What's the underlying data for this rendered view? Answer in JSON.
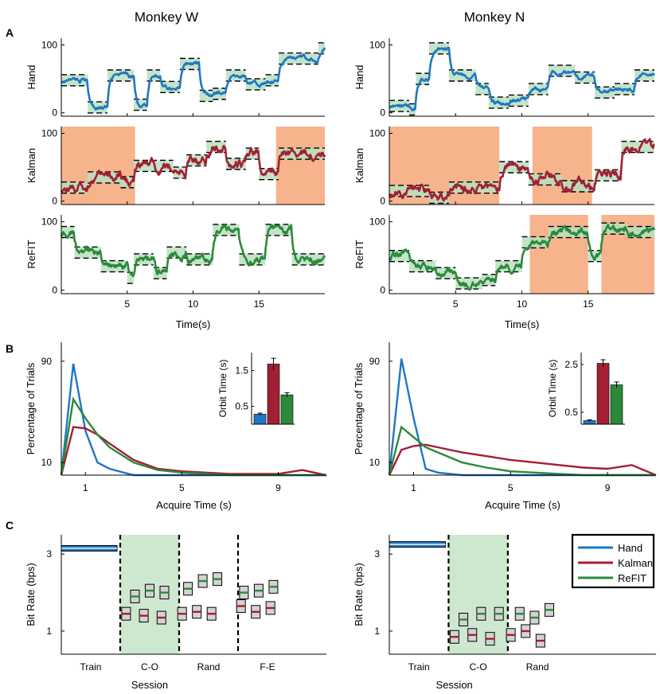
{
  "columns": [
    "Monkey W",
    "Monkey N"
  ],
  "panel_labels": [
    "A",
    "B",
    "C"
  ],
  "colors": {
    "hand": "#1f77c4",
    "kalman": "#a31f34",
    "refit": "#2a8a3a",
    "band": "#b9dfc0",
    "orange": "#f7b38c",
    "session": "#cde8cf"
  },
  "chart_data": [
    {
      "type": "line",
      "panel": "A",
      "monkey": "Monkey W",
      "xlabel": "Time(s)",
      "xlim": [
        0,
        20
      ],
      "xticks": [
        5,
        10,
        15
      ],
      "rows": [
        {
          "ylabel": "Hand",
          "ylim": [
            -5,
            110
          ],
          "yticks": [
            0,
            100
          ],
          "highlights": [],
          "targets": [
            [
              0,
              2,
              48
            ],
            [
              2,
              3.5,
              8
            ],
            [
              3.5,
              5.5,
              55
            ],
            [
              5.5,
              6.5,
              12
            ],
            [
              6.5,
              7.5,
              55
            ],
            [
              7.5,
              9,
              38
            ],
            [
              9,
              10.5,
              72
            ],
            [
              10.5,
              11.5,
              25
            ],
            [
              11.5,
              12.5,
              28
            ],
            [
              12.5,
              14,
              55
            ],
            [
              14,
              15.5,
              42
            ],
            [
              15.5,
              16.5,
              48
            ],
            [
              16.5,
              19.5,
              80
            ],
            [
              19.5,
              20,
              95
            ]
          ]
        },
        {
          "ylabel": "Kalman",
          "ylim": [
            -5,
            110
          ],
          "yticks": [
            0,
            100
          ],
          "highlights": [
            [
              0,
              5.6
            ],
            [
              16.3,
              20
            ]
          ],
          "targets": [
            [
              0,
              2,
              20
            ],
            [
              2,
              4.5,
              35
            ],
            [
              4.5,
              5.5,
              28
            ],
            [
              5.5,
              8.5,
              52
            ],
            [
              8.5,
              9.5,
              42
            ],
            [
              9.5,
              11,
              60
            ],
            [
              11,
              12.5,
              80
            ],
            [
              12.5,
              14,
              55
            ],
            [
              14,
              15,
              70
            ],
            [
              15,
              16.5,
              40
            ],
            [
              16.5,
              20,
              70
            ]
          ]
        },
        {
          "ylabel": "ReFIT",
          "ylim": [
            -5,
            110
          ],
          "yticks": [
            0,
            100
          ],
          "highlights": [],
          "targets": [
            [
              0,
              1,
              85
            ],
            [
              1,
              3,
              55
            ],
            [
              3,
              5,
              35
            ],
            [
              5,
              5.5,
              18
            ],
            [
              5.5,
              7,
              45
            ],
            [
              7,
              8,
              25
            ],
            [
              8,
              9.5,
              55
            ],
            [
              9.5,
              11.5,
              45
            ],
            [
              11.5,
              13.5,
              88
            ],
            [
              13.5,
              15.5,
              45
            ],
            [
              15.5,
              17.5,
              88
            ],
            [
              17.5,
              20,
              45
            ]
          ]
        }
      ]
    },
    {
      "type": "line",
      "panel": "A",
      "monkey": "Monkey N",
      "xlabel": "Time(s)",
      "xlim": [
        0,
        20
      ],
      "xticks": [
        5,
        10,
        15
      ],
      "rows": [
        {
          "ylabel": "Hand",
          "ylim": [
            -5,
            110
          ],
          "yticks": [
            0,
            100
          ],
          "highlights": [],
          "targets": [
            [
              0,
              1.5,
              10
            ],
            [
              1.5,
              2,
              5
            ],
            [
              2,
              3,
              50
            ],
            [
              3,
              4.5,
              95
            ],
            [
              4.5,
              6.5,
              55
            ],
            [
              6.5,
              7.5,
              35
            ],
            [
              7.5,
              9,
              15
            ],
            [
              9,
              10.5,
              18
            ],
            [
              10.5,
              12,
              35
            ],
            [
              12,
              14,
              62
            ],
            [
              14,
              15.5,
              52
            ],
            [
              15.5,
              17,
              30
            ],
            [
              17,
              18.5,
              35
            ],
            [
              18.5,
              20,
              55
            ]
          ]
        },
        {
          "ylabel": "Kalman",
          "ylim": [
            -5,
            110
          ],
          "yticks": [
            0,
            100
          ],
          "highlights": [
            [
              0,
              8.3
            ],
            [
              10.8,
              15.3
            ]
          ],
          "targets": [
            [
              0,
              3,
              15
            ],
            [
              3,
              4.5,
              5
            ],
            [
              4.5,
              8.3,
              20
            ],
            [
              8.3,
              10.5,
              50
            ],
            [
              10.5,
              13,
              32
            ],
            [
              13,
              15.5,
              22
            ],
            [
              15.5,
              17.5,
              38
            ],
            [
              17.5,
              20,
              80
            ]
          ]
        },
        {
          "ylabel": "ReFIT",
          "ylim": [
            -5,
            110
          ],
          "yticks": [
            0,
            100
          ],
          "highlights": [
            [
              10.6,
              15
            ],
            [
              16,
              20
            ]
          ],
          "targets": [
            [
              0,
              1.5,
              50
            ],
            [
              1.5,
              3.5,
              35
            ],
            [
              3.5,
              5,
              25
            ],
            [
              5,
              7,
              10
            ],
            [
              7,
              8,
              15
            ],
            [
              8,
              10,
              35
            ],
            [
              10,
              12,
              70
            ],
            [
              12,
              15,
              85
            ],
            [
              15,
              16,
              50
            ],
            [
              16,
              18,
              90
            ],
            [
              18,
              20,
              85
            ]
          ]
        }
      ]
    },
    {
      "type": "line",
      "panel": "B",
      "monkey": "Monkey W",
      "xlabel": "Acquire Time (s)",
      "ylabel": "Percentage of Trials",
      "xlim": [
        0,
        11
      ],
      "ylim": [
        0,
        105
      ],
      "xticks": [
        1,
        5,
        9
      ],
      "yticks": [
        10,
        90
      ],
      "x": [
        0,
        0.5,
        1,
        1.5,
        2,
        3,
        4,
        5,
        6,
        7,
        8,
        9,
        10,
        11
      ],
      "series": [
        {
          "name": "Hand",
          "values": [
            0,
            88,
            35,
            10,
            5,
            0,
            0,
            0,
            0,
            0,
            0,
            0,
            0,
            0
          ]
        },
        {
          "name": "Kalman",
          "values": [
            0,
            38,
            37,
            32,
            25,
            12,
            5,
            3,
            2,
            1,
            1,
            1,
            4,
            0
          ]
        },
        {
          "name": "ReFIT",
          "values": [
            0,
            60,
            45,
            32,
            22,
            10,
            4,
            2,
            1,
            0,
            0,
            0,
            0,
            0
          ]
        }
      ],
      "inset": {
        "ylabel": "Orbit Time (s)",
        "ylim": [
          0,
          2.0
        ],
        "yticks": [
          0.5,
          1.5
        ],
        "values": [
          0.28,
          1.68,
          0.82
        ],
        "errors": [
          0.03,
          0.16,
          0.06
        ]
      }
    },
    {
      "type": "line",
      "panel": "B",
      "monkey": "Monkey N",
      "xlabel": "Acquire Time (s)",
      "ylabel": "Percentage of Trials",
      "xlim": [
        0,
        11
      ],
      "ylim": [
        0,
        105
      ],
      "xticks": [
        1,
        5,
        9
      ],
      "yticks": [
        10,
        90
      ],
      "x": [
        0,
        0.5,
        1,
        1.5,
        2,
        3,
        4,
        5,
        6,
        7,
        8,
        9,
        10,
        11
      ],
      "series": [
        {
          "name": "Hand",
          "values": [
            0,
            92,
            45,
            5,
            2,
            0,
            0,
            0,
            0,
            0,
            0,
            0,
            0,
            0
          ]
        },
        {
          "name": "Kalman",
          "values": [
            0,
            20,
            23,
            24,
            22,
            18,
            15,
            12,
            10,
            8,
            6,
            5,
            8,
            0
          ]
        },
        {
          "name": "ReFIT",
          "values": [
            0,
            38,
            30,
            22,
            18,
            10,
            6,
            3,
            2,
            1,
            0,
            0,
            0,
            0
          ]
        }
      ],
      "inset": {
        "ylabel": "Orbit Time (s)",
        "ylim": [
          0,
          3.0
        ],
        "yticks": [
          0.5,
          2.5
        ],
        "values": [
          0.15,
          2.55,
          1.65
        ],
        "errors": [
          0.03,
          0.15,
          0.12
        ]
      }
    },
    {
      "type": "scatter",
      "panel": "C",
      "monkey": "Monkey W",
      "xlabel": "Session",
      "ylabel": "Bit Rate (bps)",
      "xlim": [
        0,
        4.5
      ],
      "ylim": [
        0.4,
        3.5
      ],
      "yticks": [
        1,
        3
      ],
      "sessions": [
        {
          "label": "Train",
          "x": 0.5
        },
        {
          "label": "C-O",
          "x": 1.5
        },
        {
          "label": "Rand",
          "x": 2.5
        },
        {
          "label": "F-E",
          "x": 3.5
        }
      ],
      "dividers": [
        1,
        2,
        3
      ],
      "shaded": [
        1,
        2
      ],
      "train_hand": 3.15,
      "points": [
        {
          "series": "ReFIT",
          "x": [
            1.25,
            1.5,
            1.75
          ],
          "values": [
            1.9,
            2.05,
            2.0
          ]
        },
        {
          "series": "ReFIT",
          "x": [
            2.15,
            2.4,
            2.65
          ],
          "values": [
            2.1,
            2.3,
            2.35
          ]
        },
        {
          "series": "ReFIT",
          "x": [
            3.1,
            3.35,
            3.6
          ],
          "values": [
            2.0,
            2.05,
            2.15
          ]
        },
        {
          "series": "Kalman",
          "x": [
            1.1,
            1.4,
            1.7
          ],
          "values": [
            1.45,
            1.4,
            1.35
          ]
        },
        {
          "series": "Kalman",
          "x": [
            2.05,
            2.3,
            2.55
          ],
          "values": [
            1.45,
            1.5,
            1.45
          ]
        },
        {
          "series": "Kalman",
          "x": [
            3.05,
            3.3,
            3.55
          ],
          "values": [
            1.65,
            1.5,
            1.6
          ]
        }
      ]
    },
    {
      "type": "scatter",
      "panel": "C",
      "monkey": "Monkey N",
      "xlabel": "Session",
      "ylabel": "Bit Rate (bps)",
      "xlim": [
        0,
        4.5
      ],
      "ylim": [
        0.4,
        3.5
      ],
      "yticks": [
        1,
        3
      ],
      "sessions": [
        {
          "label": "Train",
          "x": 0.5
        },
        {
          "label": "C-O",
          "x": 1.5
        },
        {
          "label": "Rand",
          "x": 2.5
        }
      ],
      "dividers": [
        1,
        2
      ],
      "shaded": [
        1,
        2
      ],
      "train_hand": 3.25,
      "points": [
        {
          "series": "ReFIT",
          "x": [
            1.25,
            1.55,
            1.85
          ],
          "values": [
            1.3,
            1.45,
            1.45
          ]
        },
        {
          "series": "ReFIT",
          "x": [
            2.2,
            2.45,
            2.7
          ],
          "values": [
            1.45,
            1.35,
            1.55
          ]
        },
        {
          "series": "Kalman",
          "x": [
            1.1,
            1.4,
            1.7
          ],
          "values": [
            0.85,
            0.9,
            0.8
          ]
        },
        {
          "series": "Kalman",
          "x": [
            2.05,
            2.3,
            2.55
          ],
          "values": [
            0.9,
            1.0,
            0.75
          ]
        }
      ],
      "legend": [
        "Hand",
        "Kalman",
        "ReFIT"
      ]
    }
  ]
}
